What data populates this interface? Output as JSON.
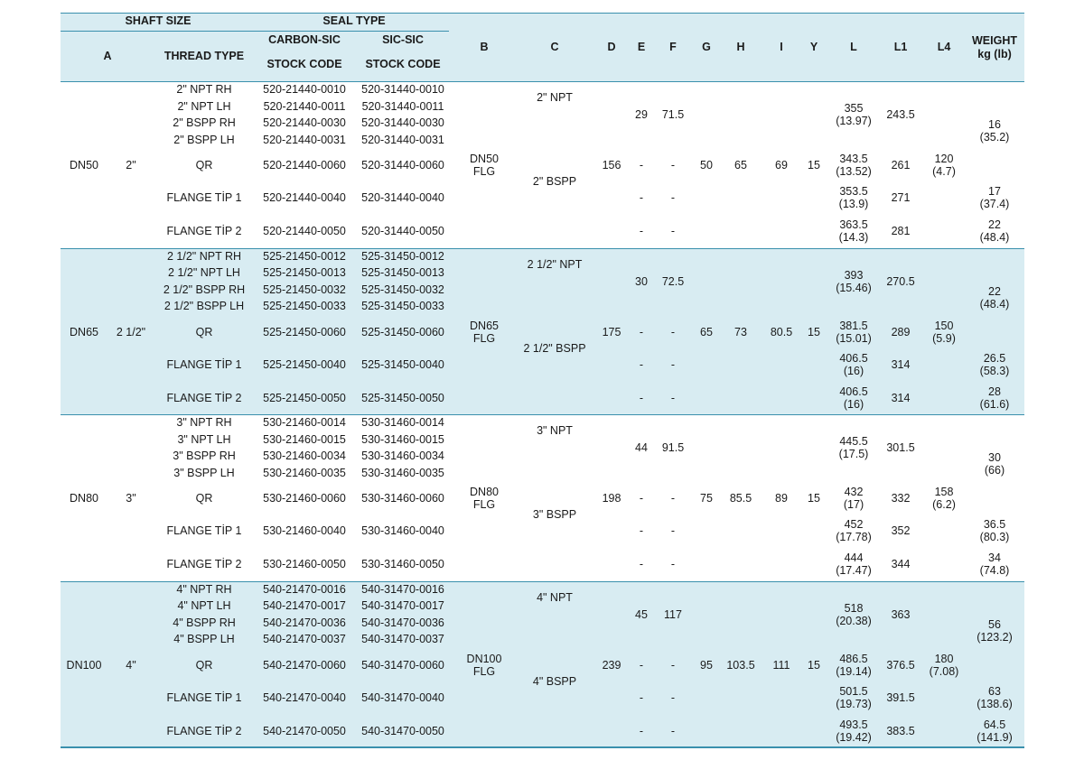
{
  "header": {
    "shaft_size": "SHAFT SIZE",
    "seal_type": "SEAL TYPE",
    "col_a": "A",
    "thread_type": "THREAD TYPE",
    "carbon_sic": "CARBON-SIC",
    "sic_sic": "SIC-SIC",
    "stock_code_1": "STOCK CODE",
    "stock_code_2": "STOCK CODE",
    "col_b": "B",
    "col_c": "C",
    "col_d": "D",
    "col_e": "E",
    "col_f": "F",
    "col_g": "G",
    "col_h": "H",
    "col_i": "I",
    "col_y": "Y",
    "col_l": "L",
    "col_l1": "L1",
    "col_l4": "L4",
    "weight": "WEIGHT",
    "weight_unit": "kg (lb)"
  },
  "groups": [
    {
      "shaft": "DN50",
      "size": "2\"",
      "b": "DN50\nFLG",
      "c_npt": "2\" NPT",
      "c_bspp": "2\" BSPP",
      "d": "156",
      "e_top": "29",
      "f_top": "71.5",
      "g": "50",
      "h": "65",
      "i": "69",
      "y": "15",
      "l4": "120\n(4.7)",
      "rows": [
        {
          "thread": "2\" NPT RH",
          "carbon": "520-21440-0010",
          "sic": "520-31440-0010"
        },
        {
          "thread": "2\" NPT LH",
          "carbon": "520-21440-0011",
          "sic": "520-31440-0011"
        },
        {
          "thread": "2\" BSPP RH",
          "carbon": "520-21440-0030",
          "sic": "520-31440-0030"
        },
        {
          "thread": "2\" BSPP LH",
          "carbon": "520-21440-0031",
          "sic": "520-31440-0031"
        },
        {
          "thread": "QR",
          "carbon": "520-21440-0060",
          "sic": "520-31440-0060"
        },
        {
          "thread": "FLANGE TİP 1",
          "carbon": "520-21440-0040",
          "sic": "520-31440-0040"
        },
        {
          "thread": "FLANGE TİP 2",
          "carbon": "520-21440-0050",
          "sic": "520-31440-0050"
        }
      ],
      "l_top": "355\n(13.97)",
      "l1_top": "243.5",
      "w_top": "16\n(35.2)",
      "qr": {
        "e": "-",
        "f": "-",
        "l": "343.5\n(13.52)",
        "l1": "261"
      },
      "fl1": {
        "e": "-",
        "f": "-",
        "l": "353.5\n(13.9)",
        "l1": "271",
        "w": "17\n(37.4)"
      },
      "fl2": {
        "e": "-",
        "f": "-",
        "l": "363.5\n(14.3)",
        "l1": "281",
        "w": "22\n(48.4)"
      }
    },
    {
      "shaft": "DN65",
      "size": "2 1/2\"",
      "b": "DN65\nFLG",
      "c_npt": "2 1/2\" NPT",
      "c_bspp": "2 1/2\" BSPP",
      "d": "175",
      "e_top": "30",
      "f_top": "72.5",
      "g": "65",
      "h": "73",
      "i": "80.5",
      "y": "15",
      "l4": "150\n(5.9)",
      "rows": [
        {
          "thread": "2 1/2\" NPT RH",
          "carbon": "525-21450-0012",
          "sic": "525-31450-0012"
        },
        {
          "thread": "2 1/2\" NPT LH",
          "carbon": "525-21450-0013",
          "sic": "525-31450-0013"
        },
        {
          "thread": "2 1/2\" BSPP RH",
          "carbon": "525-21450-0032",
          "sic": "525-31450-0032"
        },
        {
          "thread": "2 1/2\" BSPP LH",
          "carbon": "525-21450-0033",
          "sic": "525-31450-0033"
        },
        {
          "thread": "QR",
          "carbon": "525-21450-0060",
          "sic": "525-31450-0060"
        },
        {
          "thread": "FLANGE TİP 1",
          "carbon": "525-21450-0040",
          "sic": "525-31450-0040"
        },
        {
          "thread": "FLANGE TİP 2",
          "carbon": "525-21450-0050",
          "sic": "525-31450-0050"
        }
      ],
      "l_top": "393\n(15.46)",
      "l1_top": "270.5",
      "w_top": "22\n(48.4)",
      "qr": {
        "e": "-",
        "f": "-",
        "l": "381.5\n(15.01)",
        "l1": "289"
      },
      "fl1": {
        "e": "-",
        "f": "-",
        "l": "406.5\n(16)",
        "l1": "314",
        "w": "26.5\n(58.3)"
      },
      "fl2": {
        "e": "-",
        "f": "-",
        "l": "406.5\n(16)",
        "l1": "314",
        "w": "28\n(61.6)"
      }
    },
    {
      "shaft": "DN80",
      "size": "3\"",
      "b": "DN80\nFLG",
      "c_npt": "3\" NPT",
      "c_bspp": "3\" BSPP",
      "d": "198",
      "e_top": "44",
      "f_top": "91.5",
      "g": "75",
      "h": "85.5",
      "i": "89",
      "y": "15",
      "l4": "158\n(6.2)",
      "rows": [
        {
          "thread": "3\" NPT RH",
          "carbon": "530-21460-0014",
          "sic": "530-31460-0014"
        },
        {
          "thread": "3\" NPT LH",
          "carbon": "530-21460-0015",
          "sic": "530-31460-0015"
        },
        {
          "thread": "3\" BSPP RH",
          "carbon": "530-21460-0034",
          "sic": "530-31460-0034"
        },
        {
          "thread": "3\" BSPP LH",
          "carbon": "530-21460-0035",
          "sic": "530-31460-0035"
        },
        {
          "thread": "QR",
          "carbon": "530-21460-0060",
          "sic": "530-31460-0060"
        },
        {
          "thread": "FLANGE TİP 1",
          "carbon": "530-21460-0040",
          "sic": "530-31460-0040"
        },
        {
          "thread": "FLANGE TİP 2",
          "carbon": "530-21460-0050",
          "sic": "530-31460-0050"
        }
      ],
      "l_top": "445.5\n(17.5)",
      "l1_top": "301.5",
      "w_top": "30\n(66)",
      "qr": {
        "e": "-",
        "f": "-",
        "l": "432\n(17)",
        "l1": "332"
      },
      "fl1": {
        "e": "-",
        "f": "-",
        "l": "452\n(17.78)",
        "l1": "352",
        "w": "36.5\n(80.3)"
      },
      "fl2": {
        "e": "-",
        "f": "-",
        "l": "444\n(17.47)",
        "l1": "344",
        "w": "34\n(74.8)"
      }
    },
    {
      "shaft": "DN100",
      "size": "4\"",
      "b": "DN100\nFLG",
      "c_npt": "4\" NPT",
      "c_bspp": "4\" BSPP",
      "d": "239",
      "e_top": "45",
      "f_top": "117",
      "g": "95",
      "h": "103.5",
      "i": "111",
      "y": "15",
      "l4": "180\n(7.08)",
      "rows": [
        {
          "thread": "4\" NPT RH",
          "carbon": "540-21470-0016",
          "sic": "540-31470-0016"
        },
        {
          "thread": "4\" NPT LH",
          "carbon": "540-21470-0017",
          "sic": "540-31470-0017"
        },
        {
          "thread": "4\" BSPP RH",
          "carbon": "540-21470-0036",
          "sic": "540-31470-0036"
        },
        {
          "thread": "4\" BSPP LH",
          "carbon": "540-21470-0037",
          "sic": "540-31470-0037"
        },
        {
          "thread": "QR",
          "carbon": "540-21470-0060",
          "sic": "540-31470-0060"
        },
        {
          "thread": "FLANGE TİP 1",
          "carbon": "540-21470-0040",
          "sic": "540-31470-0040"
        },
        {
          "thread": "FLANGE TİP 2",
          "carbon": "540-21470-0050",
          "sic": "540-31470-0050"
        }
      ],
      "l_top": "518\n(20.38)",
      "l1_top": "363",
      "w_top": "56\n(123.2)",
      "qr": {
        "e": "-",
        "f": "-",
        "l": "486.5\n(19.14)",
        "l1": "376.5"
      },
      "fl1": {
        "e": "-",
        "f": "-",
        "l": "501.5\n(19.73)",
        "l1": "391.5",
        "w": "63\n(138.6)"
      },
      "fl2": {
        "e": "-",
        "f": "-",
        "l": "493.5\n(19.42)",
        "l1": "383.5",
        "w": "64.5\n(141.9)"
      }
    }
  ]
}
